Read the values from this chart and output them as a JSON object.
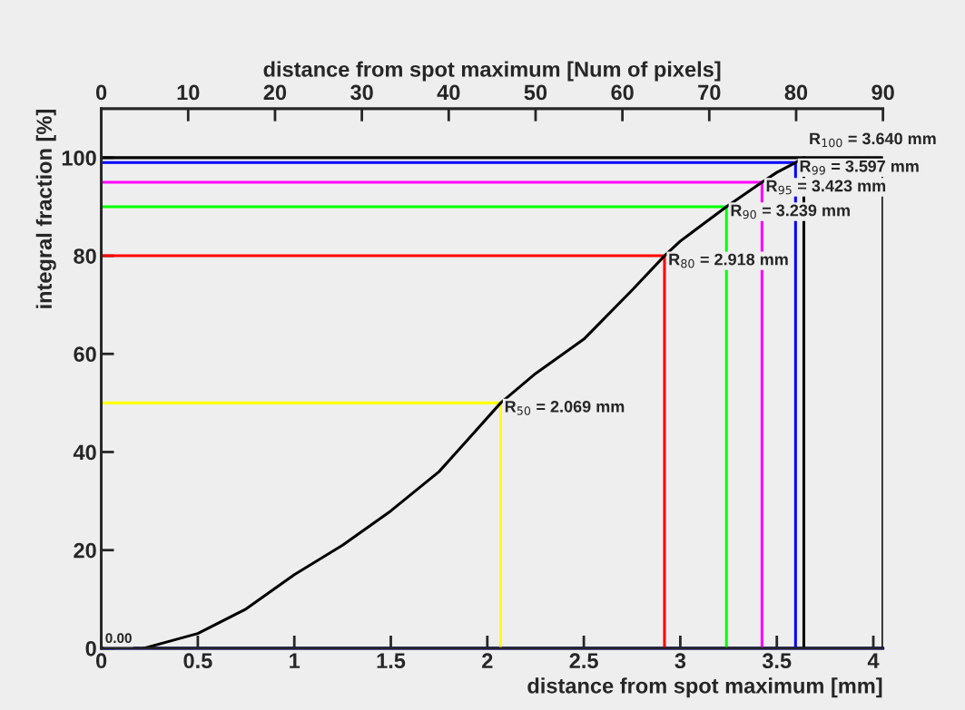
{
  "chart_data": {
    "type": "line",
    "xlabel": "distance from spot maximum [mm]",
    "ylabel": "integral fraction [%]",
    "x2label": "distance from spot maximum [Num of pixels]",
    "xlim": [
      0,
      4.05
    ],
    "xticks": [
      0,
      0.5,
      1,
      1.5,
      2,
      2.5,
      3,
      3.5,
      4
    ],
    "x2lim": [
      0,
      90
    ],
    "x2ticks": [
      0,
      10,
      20,
      30,
      40,
      50,
      60,
      70,
      80,
      90
    ],
    "ylim": [
      0,
      110
    ],
    "yticks": [
      0,
      20,
      40,
      60,
      80,
      100
    ],
    "grid": false,
    "marker": "none",
    "line_style": "solid",
    "series": [
      {
        "color": "#000000",
        "x": [
          0.22,
          0.5,
          0.75,
          1,
          1.25,
          1.5,
          1.75,
          2.069,
          2.25,
          2.5,
          2.75,
          2.918,
          3.0,
          3.239,
          3.423,
          3.5,
          3.597,
          3.64,
          4.05,
          4.05
        ],
        "values": [
          0,
          3,
          8,
          15,
          21,
          28,
          36,
          50,
          56,
          63,
          73,
          80,
          83,
          90,
          95,
          97,
          99,
          100,
          100,
          0
        ]
      },
      {
        "color": "#ffff00",
        "x": [
          0,
          2.069,
          2.069
        ],
        "values": [
          50,
          50,
          0
        ]
      },
      {
        "color": "#ff0000",
        "x": [
          0,
          2.918,
          2.918
        ],
        "values": [
          80,
          80,
          0
        ]
      },
      {
        "color": "#00ff00",
        "x": [
          0,
          3.239,
          3.239
        ],
        "values": [
          90,
          90,
          0
        ]
      },
      {
        "color": "#ff00ff",
        "x": [
          0,
          3.423,
          3.423
        ],
        "values": [
          95,
          95,
          0
        ]
      },
      {
        "color": "#0000ff",
        "x": [
          0,
          3.597,
          3.597
        ],
        "values": [
          99,
          99,
          0
        ]
      },
      {
        "color": "#000000",
        "x": [
          0,
          3.64,
          3.64
        ],
        "values": [
          100,
          100,
          0
        ]
      }
    ],
    "ref_lines": [
      {
        "axis": "y",
        "value": 0,
        "color": "#0000ff"
      }
    ],
    "annotations": [
      {
        "text": "0.00",
        "x": 0,
        "y": 0
      },
      {
        "text": "R$_{50}$ = 2.069 mm",
        "x": 2.069,
        "y": 50
      },
      {
        "text": "R$_{80}$ = 2.918 mm",
        "x": 2.918,
        "y": 80
      },
      {
        "text": "R$_{90}$ = 3.239 mm",
        "x": 3.239,
        "y": 90
      },
      {
        "text": "R$_{95}$ = 3.423 mm",
        "x": 3.423,
        "y": 95
      },
      {
        "text": "R$_{99}$ = 3.597 mm",
        "x": 3.597,
        "y": 99
      },
      {
        "text": "R$_{100}$ = 3.640 mm",
        "x": 3.64,
        "y": 100
      }
    ]
  }
}
